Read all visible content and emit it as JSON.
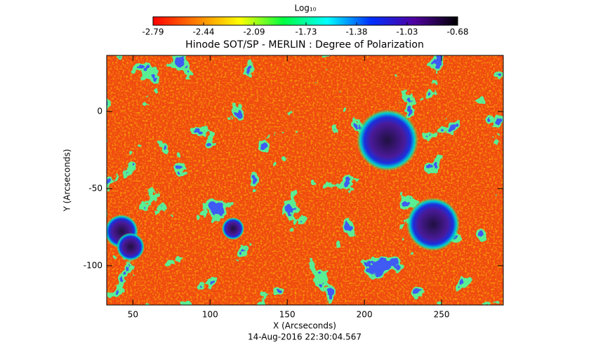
{
  "chart_data": {
    "type": "image",
    "title": "Hinode SOT/SP - MERLIN : Degree of Polarization",
    "x_label": "X (Arcseconds)",
    "y_label": "Y (Arcseconds)",
    "footer": "14-Aug-2016 22:30:04.567",
    "xlim": [
      33,
      290
    ],
    "xticks": [
      50,
      100,
      150,
      200,
      250
    ],
    "ylim": [
      -125.5,
      36.4
    ],
    "yticks": [
      0,
      -50,
      -100
    ],
    "colorbar": {
      "label": "Log₁₀",
      "lim": [
        -2.79,
        -0.68
      ],
      "ticks": [
        -2.79,
        -2.44,
        -2.09,
        -1.73,
        -1.38,
        -1.03,
        -0.68
      ],
      "colors": [
        "#ff0000",
        "#ff7f00",
        "#ffff00",
        "#00ff40",
        "#00ffff",
        "#0030ff",
        "#5000a0",
        "#000000"
      ]
    }
  }
}
